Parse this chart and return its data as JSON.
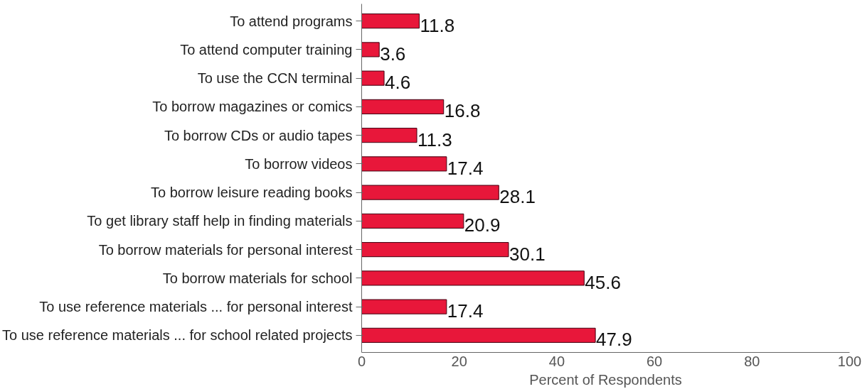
{
  "chart_data": {
    "type": "bar",
    "orientation": "horizontal",
    "xlabel": "Percent of Respondents",
    "categories": [
      "To attend programs",
      "To attend computer training",
      "To use the CCN terminal",
      "To borrow magazines or comics",
      "To borrow CDs or audio tapes",
      "To borrow videos",
      "To borrow leisure reading books",
      "To get library staff help in finding materials",
      "To borrow materials for personal interest",
      "To borrow materials for school",
      "To use reference materials ... for personal interest",
      "To use reference materials ... for school related projects"
    ],
    "values": [
      11.8,
      3.6,
      4.6,
      16.8,
      11.3,
      17.4,
      28.1,
      20.9,
      30.1,
      45.6,
      17.4,
      47.9
    ],
    "color": "#e8173a",
    "xlim": [
      0,
      100
    ],
    "xticks": [
      0,
      20,
      40,
      60,
      80,
      100
    ],
    "grid": false,
    "data_labels": true
  }
}
